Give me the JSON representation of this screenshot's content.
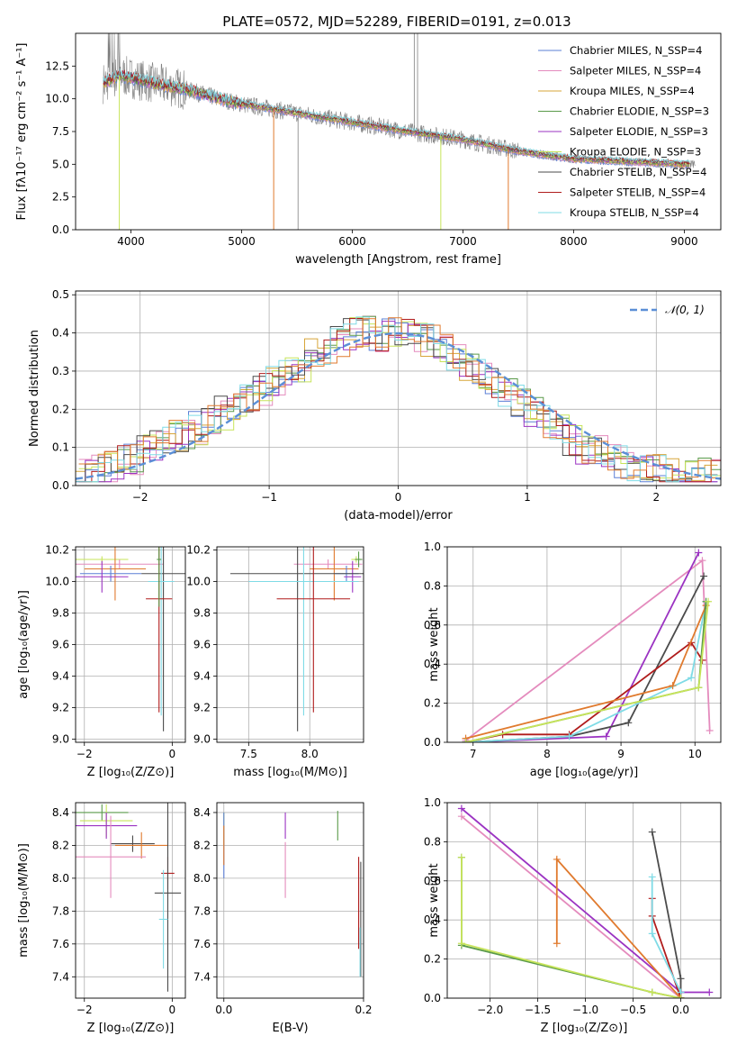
{
  "figure_title": "PLATE=0572, MJD=52289, FIBERID=0191, z=0.013",
  "colors": {
    "chabrier_miles": "#5b7fd6",
    "salpeter_miles": "#e48bbd",
    "kroupa_miles": "#d7a53a",
    "chabrier_elodie": "#5a9a4a",
    "salpeter_elodie": "#9b33c2",
    "kroupa_elodie": "#c7e45a",
    "chabrier_stelib": "#4b4b4b",
    "salpeter_stelib": "#b01c1c",
    "kroupa_stelib": "#7fdbe6",
    "observed": "#808080",
    "gaussian": "#5b8fd6",
    "orange": "#e07a2e",
    "grid": "#b0b0b0"
  },
  "chart_data": [
    {
      "id": "spectrum",
      "type": "line",
      "xlabel": "wavelength [Angstrom, rest frame]",
      "ylabel": "Flux [fλ10⁻¹⁷ erg cm⁻² s⁻¹ A⁻¹]",
      "xlim": [
        3500,
        9330
      ],
      "ylim": [
        0,
        15
      ],
      "x_ticks": [
        "4000",
        "5000",
        "6000",
        "7000",
        "8000",
        "9000"
      ],
      "y_ticks": [
        "0.0",
        "2.5",
        "5.0",
        "7.5",
        "10.0",
        "12.5"
      ],
      "legend": [
        "Chabrier MILES, N_SSP=4",
        "Salpeter MILES, N_SSP=4",
        "Kroupa MILES, N_SSP=4",
        "Chabrier ELODIE, N_SSP=3",
        "Salpeter ELODIE, N_SSP=3",
        "Kroupa ELODIE, N_SSP=3",
        "Chabrier STELIB, N_SSP=4",
        "Salpeter STELIB, N_SSP=4",
        "Kroupa STELIB, N_SSP=4"
      ],
      "model_trend": {
        "x": [
          3750,
          3900,
          4000,
          4200,
          4500,
          4800,
          5000,
          5500,
          6000,
          6500,
          7000,
          7500,
          8000,
          8500,
          9000
        ],
        "y": [
          11.2,
          11.8,
          11.6,
          11.2,
          10.7,
          10.0,
          9.6,
          8.9,
          8.2,
          7.5,
          6.9,
          6.0,
          5.4,
          5.2,
          5.0
        ]
      },
      "dropouts": [
        {
          "x": 3895,
          "series": "kroupa_elodie"
        },
        {
          "x": 5290,
          "series": "orange"
        },
        {
          "x": 6800,
          "series": "kroupa_elodie"
        },
        {
          "x": 7410,
          "series": "orange"
        }
      ],
      "observed_spikes": [
        {
          "x": 5510,
          "y": 0
        },
        {
          "x": 6560,
          "y": 15
        },
        {
          "x": 6590,
          "y": 15
        }
      ]
    },
    {
      "id": "residuals",
      "type": "bar",
      "xlabel": "(data-model)/error",
      "ylabel": "Normed distribution",
      "xlim": [
        -2.5,
        2.5
      ],
      "ylim": [
        0,
        0.51
      ],
      "x_ticks": [
        "−2",
        "−1",
        "0",
        "1",
        "2"
      ],
      "y_ticks": [
        "0.0",
        "0.1",
        "0.2",
        "0.3",
        "0.4",
        "0.5"
      ],
      "legend": [
        "𝒩(0, 1)"
      ],
      "bin_width": 0.1,
      "base_histogram": [
        0.03,
        0.04,
        0.05,
        0.06,
        0.07,
        0.09,
        0.11,
        0.13,
        0.13,
        0.15,
        0.17,
        0.19,
        0.21,
        0.23,
        0.25,
        0.27,
        0.29,
        0.31,
        0.34,
        0.36,
        0.38,
        0.4,
        0.4,
        0.39,
        0.4,
        0.4,
        0.39,
        0.38,
        0.36,
        0.34,
        0.32,
        0.29,
        0.27,
        0.24,
        0.22,
        0.19,
        0.17,
        0.15,
        0.12,
        0.1,
        0.09,
        0.07,
        0.06,
        0.05,
        0.04,
        0.04,
        0.03,
        0.03,
        0.03,
        0.03
      ]
    },
    {
      "id": "age-vs-z",
      "type": "scatter",
      "xlabel": "Z [log₁₀(Z/Z⊙)]",
      "ylabel": "age  [log₁₀(age/yr)]",
      "xlim": [
        -2.2,
        0.3
      ],
      "ylim": [
        8.98,
        10.22
      ],
      "x_ticks": [
        "−2",
        "0"
      ],
      "y_ticks": [
        "9.0",
        "9.2",
        "9.4",
        "9.6",
        "9.8",
        "10.0",
        "10.2"
      ],
      "points": [
        {
          "series": "kroupa_elodie",
          "x": -1.6,
          "y": 10.14,
          "xerr": 0.6,
          "yerr": 0.02
        },
        {
          "series": "salpeter_miles",
          "x": -1.2,
          "y": 10.11,
          "xerr": 1.0,
          "yerr": 0.03
        },
        {
          "series": "orange",
          "x": -1.3,
          "y": 10.08,
          "xerr": 0.7,
          "yerr": 0.2
        },
        {
          "series": "chabrier_miles",
          "x": -1.4,
          "y": 10.05,
          "xerr": 0.7,
          "yerr": 0.05
        },
        {
          "series": "salpeter_elodie",
          "x": -1.6,
          "y": 10.03,
          "xerr": 0.6,
          "yerr": 0.1
        },
        {
          "series": "chabrier_stelib",
          "x": -0.2,
          "y": 10.05,
          "xerr": 0.5,
          "yerr": 1.0
        },
        {
          "series": "kroupa_stelib",
          "x": -0.25,
          "y": 10.0,
          "xerr": 0.3,
          "yerr": 0.85
        },
        {
          "series": "salpeter_stelib",
          "x": -0.3,
          "y": 9.89,
          "xerr": 0.3,
          "yerr": 0.72
        },
        {
          "series": "chabrier_elodie",
          "x": -0.3,
          "y": 10.14,
          "xerr": 0.05,
          "yerr": 0.3
        }
      ]
    },
    {
      "id": "age-vs-mass",
      "type": "scatter",
      "xlabel": "mass [log₁₀(M/M⊙)]",
      "ylabel": "",
      "xlim": [
        7.24,
        8.44
      ],
      "ylim": [
        8.98,
        10.22
      ],
      "x_ticks": [
        "7.5",
        "8.0"
      ],
      "y_ticks": [
        "9.0",
        "9.2",
        "9.4",
        "9.6",
        "9.8",
        "10.0",
        "10.2"
      ],
      "points": [
        {
          "series": "kroupa_elodie",
          "x": 8.38,
          "y": 10.14,
          "xerr": 0.04,
          "yerr": 0.02
        },
        {
          "series": "salpeter_miles",
          "x": 8.15,
          "y": 10.11,
          "xerr": 0.28,
          "yerr": 0.03
        },
        {
          "series": "orange",
          "x": 8.2,
          "y": 10.08,
          "xerr": 0.2,
          "yerr": 0.2
        },
        {
          "series": "chabrier_miles",
          "x": 8.3,
          "y": 10.05,
          "xerr": 0.1,
          "yerr": 0.05
        },
        {
          "series": "salpeter_elodie",
          "x": 8.35,
          "y": 10.03,
          "xerr": 0.07,
          "yerr": 0.1
        },
        {
          "series": "chabrier_stelib",
          "x": 7.9,
          "y": 10.05,
          "xerr": 0.55,
          "yerr": 1.0
        },
        {
          "series": "kroupa_stelib",
          "x": 7.95,
          "y": 10.0,
          "xerr": 0.45,
          "yerr": 0.85
        },
        {
          "series": "salpeter_stelib",
          "x": 8.03,
          "y": 9.89,
          "xerr": 0.3,
          "yerr": 0.72
        },
        {
          "series": "chabrier_elodie",
          "x": 8.4,
          "y": 10.14,
          "xerr": 0.03,
          "yerr": 0.05
        }
      ]
    },
    {
      "id": "weight-vs-age",
      "type": "line",
      "xlabel": "age  [log₁₀(age/yr)]",
      "ylabel": "mass weight",
      "xlim": [
        6.65,
        10.35
      ],
      "ylim": [
        0,
        1.0
      ],
      "x_ticks": [
        "7",
        "8",
        "9",
        "10"
      ],
      "y_ticks": [
        "0.0",
        "0.2",
        "0.4",
        "0.6",
        "0.8",
        "1.0"
      ],
      "series": [
        {
          "key": "salpeter_miles",
          "x": [
            6.9,
            10.1,
            10.2
          ],
          "y": [
            0.01,
            0.93,
            0.06
          ]
        },
        {
          "key": "salpeter_elodie",
          "x": [
            6.9,
            8.8,
            10.05
          ],
          "y": [
            0.0,
            0.03,
            0.97
          ]
        },
        {
          "key": "chabrier_stelib",
          "x": [
            6.9,
            8.3,
            9.1,
            10.12
          ],
          "y": [
            0.0,
            0.03,
            0.1,
            0.85
          ]
        },
        {
          "key": "salpeter_stelib",
          "x": [
            6.9,
            7.4,
            8.3,
            9.95,
            10.1
          ],
          "y": [
            0.0,
            0.04,
            0.04,
            0.51,
            0.42
          ]
        },
        {
          "key": "kroupa_stelib",
          "x": [
            6.9,
            8.3,
            9.95,
            10.15
          ],
          "y": [
            0.0,
            0.03,
            0.33,
            0.72
          ]
        },
        {
          "key": "orange",
          "x": [
            6.9,
            9.7,
            10.15
          ],
          "y": [
            0.02,
            0.29,
            0.7
          ]
        },
        {
          "key": "chabrier_elodie",
          "x": [
            6.9,
            10.05,
            10.15
          ],
          "y": [
            0.0,
            0.28,
            0.72
          ]
        },
        {
          "key": "kroupa_elodie",
          "x": [
            6.9,
            10.05,
            10.18
          ],
          "y": [
            0.0,
            0.28,
            0.72
          ]
        }
      ]
    },
    {
      "id": "mass-vs-z",
      "type": "scatter",
      "xlabel": "Z [log₁₀(Z/Z⊙)]",
      "ylabel": "mass [log₁₀(M/M⊙)]",
      "xlim": [
        -2.2,
        0.3
      ],
      "ylim": [
        7.27,
        8.46
      ],
      "x_ticks": [
        "−2",
        "0"
      ],
      "y_ticks": [
        "7.4",
        "7.6",
        "7.8",
        "8.0",
        "8.2",
        "8.4"
      ],
      "points": [
        {
          "series": "chabrier_elodie",
          "x": -1.6,
          "y": 8.4,
          "xerr": 0.6,
          "yerr": 0.05
        },
        {
          "series": "kroupa_elodie",
          "x": -1.5,
          "y": 8.35,
          "xerr": 0.6,
          "yerr": 0.1
        },
        {
          "series": "salpeter_elodie",
          "x": -1.5,
          "y": 8.32,
          "xerr": 0.7,
          "yerr": 0.08
        },
        {
          "series": "chabrier_stelib",
          "x": -0.9,
          "y": 8.21,
          "xerr": 0.5,
          "yerr": 0.05
        },
        {
          "series": "orange",
          "x": -0.7,
          "y": 8.2,
          "xerr": 0.6,
          "yerr": 0.08
        },
        {
          "series": "salpeter_miles",
          "x": -1.4,
          "y": 8.13,
          "xerr": 0.8,
          "yerr": 0.25
        },
        {
          "series": "salpeter_stelib",
          "x": -0.1,
          "y": 8.03,
          "xerr": 0.15,
          "yerr": 0.1
        },
        {
          "series": "chabrier_stelib",
          "x": -0.1,
          "y": 7.91,
          "xerr": 0.3,
          "yerr": 0.6
        },
        {
          "series": "kroupa_stelib",
          "x": -0.2,
          "y": 7.75,
          "xerr": 0.1,
          "yerr": 0.3
        }
      ]
    },
    {
      "id": "mass-vs-ebv",
      "type": "scatter",
      "xlabel": "E(B-V)",
      "ylabel": "",
      "xlim": [
        -0.01,
        0.2
      ],
      "ylim": [
        7.27,
        8.46
      ],
      "x_ticks": [
        "0.0",
        "0.2"
      ],
      "y_ticks": [
        "7.4",
        "7.6",
        "7.8",
        "8.0",
        "8.2",
        "8.4"
      ],
      "points": [
        {
          "series": "kroupa_elodie",
          "x": 0.0,
          "y": 8.3,
          "xerr": 0,
          "yerr": 0.1
        },
        {
          "series": "chabrier_miles",
          "x": 0.0,
          "y": 8.2,
          "xerr": 0,
          "yerr": 0.2
        },
        {
          "series": "orange",
          "x": 0.0,
          "y": 8.2,
          "xerr": 0,
          "yerr": 0.12
        },
        {
          "series": "salpeter_elodie",
          "x": 0.088,
          "y": 8.32,
          "xerr": 0,
          "yerr": 0.08
        },
        {
          "series": "salpeter_miles",
          "x": 0.088,
          "y": 8.05,
          "xerr": 0,
          "yerr": 0.17
        },
        {
          "series": "chabrier_elodie",
          "x": 0.163,
          "y": 8.32,
          "xerr": 0,
          "yerr": 0.09
        },
        {
          "series": "salpeter_stelib",
          "x": 0.193,
          "y": 7.85,
          "xerr": 0,
          "yerr": 0.28
        },
        {
          "series": "chabrier_stelib",
          "x": 0.196,
          "y": 7.75,
          "xerr": 0,
          "yerr": 0.35
        },
        {
          "series": "kroupa_stelib",
          "x": 0.195,
          "y": 7.55,
          "xerr": 0,
          "yerr": 0.15
        }
      ]
    },
    {
      "id": "weight-vs-z",
      "type": "line",
      "xlabel": "Z [log₁₀(Z/Z⊙)]",
      "ylabel": "mass weight",
      "xlim": [
        -2.45,
        0.42
      ],
      "ylim": [
        0,
        1.0
      ],
      "x_ticks": [
        "−2.0",
        "−1.5",
        "−1.0",
        "−0.5",
        "0.0"
      ],
      "y_ticks": [
        "0.0",
        "0.2",
        "0.4",
        "0.6",
        "0.8",
        "1.0"
      ],
      "series": [
        {
          "key": "salpeter_miles",
          "x": [
            -2.3,
            0.0
          ],
          "y": [
            0.93,
            0.0
          ]
        },
        {
          "key": "salpeter_elodie",
          "x": [
            -2.3,
            0.0,
            0.3
          ],
          "y": [
            0.97,
            0.03,
            0.03
          ]
        },
        {
          "key": "chabrier_stelib",
          "x": [
            -0.3,
            0.0,
            0.0
          ],
          "y": [
            0.85,
            0.1,
            0.0
          ]
        },
        {
          "key": "salpeter_stelib",
          "x": [
            -0.3,
            -0.3,
            0.0
          ],
          "y": [
            0.51,
            0.42,
            0.0
          ]
        },
        {
          "key": "kroupa_stelib",
          "x": [
            -0.3,
            -0.3,
            0.0
          ],
          "y": [
            0.62,
            0.33,
            0.03
          ]
        },
        {
          "key": "orange",
          "x": [
            -1.3,
            -1.3,
            0.0
          ],
          "y": [
            0.28,
            0.71,
            0.0
          ]
        },
        {
          "key": "chabrier_elodie",
          "x": [
            -2.3,
            -2.3,
            -0.3,
            0.0
          ],
          "y": [
            0.72,
            0.27,
            0.03,
            0.0
          ]
        },
        {
          "key": "kroupa_elodie",
          "x": [
            -2.3,
            -2.3,
            -0.3,
            0.0
          ],
          "y": [
            0.72,
            0.28,
            0.03,
            0.0
          ]
        }
      ]
    }
  ]
}
